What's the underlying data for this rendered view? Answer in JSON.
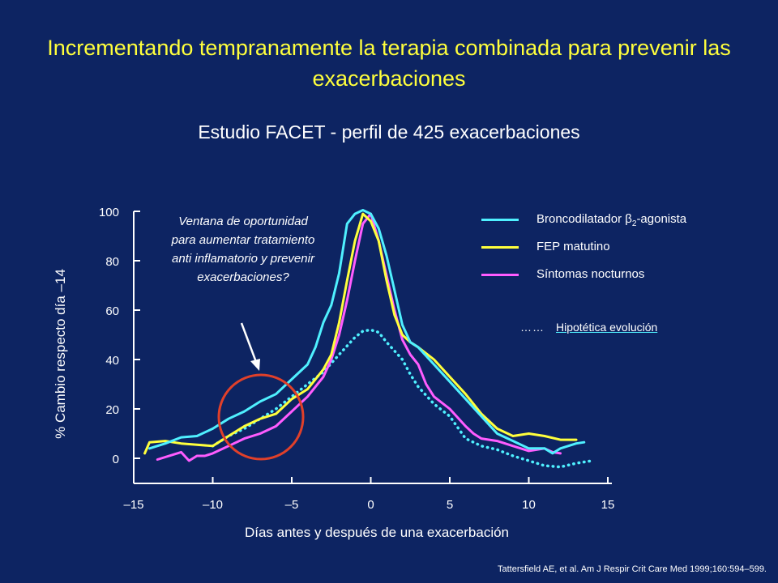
{
  "slide": {
    "title": "Incrementando tempranamente la terapia combinada para prevenir las exacerbaciones",
    "subtitle": "Estudio FACET - perfil de 425 exacerbaciones",
    "citation": "Tattersfield AE, et al. Am J Respir Crit Care Med 1999;160:594–599.",
    "annotation": "Ventana de oportunidad para aumentar tratamiento anti inflamatorio y prevenir exacerbaciones?",
    "hypothetical_dots": "……",
    "hypothetical_label": "Hipotética evolución"
  },
  "colors": {
    "background": "#0d2462",
    "title": "#ffff3c",
    "cyan": "#4ff0ff",
    "yellow": "#ffff3c",
    "magenta": "#ff5cff",
    "circle": "#e0402a"
  },
  "chart_data": {
    "type": "line",
    "title": "",
    "xlabel": "Días antes y después de una exacerbación",
    "ylabel": "% Cambio respecto día  –14",
    "xlim": [
      -15,
      15
    ],
    "ylim": [
      -5,
      100
    ],
    "xticks": [
      -15,
      -10,
      -5,
      0,
      5,
      10,
      15
    ],
    "xtick_labels": [
      "–15",
      "–10",
      "–5",
      "0",
      "5",
      "10",
      "15"
    ],
    "yticks": [
      0,
      20,
      40,
      60,
      80,
      100
    ],
    "ytick_labels": [
      "0",
      "20",
      "40",
      "60",
      "80",
      "100"
    ],
    "legend_position": "top-right",
    "series": [
      {
        "name": "Broncodilatador β2-agonista",
        "color": "#4ff0ff",
        "style": "solid",
        "points": [
          [
            -14,
            4
          ],
          [
            -13,
            6
          ],
          [
            -12,
            8.5
          ],
          [
            -11,
            9
          ],
          [
            -10,
            12
          ],
          [
            -9,
            16
          ],
          [
            -8,
            19
          ],
          [
            -7,
            23
          ],
          [
            -6,
            26
          ],
          [
            -5,
            32
          ],
          [
            -4,
            38
          ],
          [
            -3.5,
            45
          ],
          [
            -3,
            55
          ],
          [
            -2.5,
            62
          ],
          [
            -2,
            75
          ],
          [
            -1.5,
            95
          ],
          [
            -1,
            99
          ],
          [
            -0.5,
            100.5
          ],
          [
            0,
            99
          ],
          [
            0.5,
            93
          ],
          [
            1,
            82
          ],
          [
            1.5,
            68
          ],
          [
            2,
            54
          ],
          [
            2.5,
            47
          ],
          [
            3,
            45
          ],
          [
            4,
            38
          ],
          [
            5,
            31
          ],
          [
            6,
            24
          ],
          [
            7,
            17
          ],
          [
            8,
            10
          ],
          [
            9,
            7
          ],
          [
            10,
            4
          ],
          [
            11,
            4
          ],
          [
            11.5,
            2
          ],
          [
            12,
            4
          ],
          [
            13,
            6
          ],
          [
            13.5,
            6.5
          ]
        ]
      },
      {
        "name": "FEP matutino",
        "color": "#ffff3c",
        "style": "solid",
        "points": [
          [
            -14.3,
            2
          ],
          [
            -14,
            6.5
          ],
          [
            -13,
            7
          ],
          [
            -12,
            6
          ],
          [
            -11,
            5.5
          ],
          [
            -10,
            5
          ],
          [
            -9,
            9
          ],
          [
            -8,
            13
          ],
          [
            -7,
            16
          ],
          [
            -6,
            18
          ],
          [
            -5,
            24
          ],
          [
            -4,
            28
          ],
          [
            -3,
            36
          ],
          [
            -2.5,
            42
          ],
          [
            -2,
            55
          ],
          [
            -1.5,
            72
          ],
          [
            -1,
            88
          ],
          [
            -0.5,
            99
          ],
          [
            0,
            96
          ],
          [
            0.5,
            88
          ],
          [
            1,
            72
          ],
          [
            1.5,
            58
          ],
          [
            2,
            50
          ],
          [
            2.5,
            47
          ],
          [
            3,
            45
          ],
          [
            4,
            40
          ],
          [
            5,
            33
          ],
          [
            6,
            26
          ],
          [
            7,
            18
          ],
          [
            8,
            12
          ],
          [
            9,
            9
          ],
          [
            10,
            10
          ],
          [
            11,
            9
          ],
          [
            12,
            7.5
          ],
          [
            13,
            7.5
          ]
        ]
      },
      {
        "name": "Síntomas nocturnos",
        "color": "#ff5cff",
        "style": "solid",
        "points": [
          [
            -13.5,
            -0.5
          ],
          [
            -12.5,
            1.5
          ],
          [
            -12,
            2.5
          ],
          [
            -11.5,
            -1
          ],
          [
            -11,
            1
          ],
          [
            -10.5,
            1
          ],
          [
            -10,
            2
          ],
          [
            -9,
            5
          ],
          [
            -8,
            8
          ],
          [
            -7,
            10
          ],
          [
            -6,
            13
          ],
          [
            -5,
            19
          ],
          [
            -4,
            25
          ],
          [
            -3,
            33
          ],
          [
            -2.5,
            40
          ],
          [
            -2,
            50
          ],
          [
            -1.5,
            64
          ],
          [
            -1,
            80
          ],
          [
            -0.5,
            95
          ],
          [
            0,
            99
          ],
          [
            0.5,
            88
          ],
          [
            1,
            74
          ],
          [
            1.5,
            60
          ],
          [
            2,
            48
          ],
          [
            2.5,
            42
          ],
          [
            3,
            38
          ],
          [
            3.5,
            30
          ],
          [
            4,
            25
          ],
          [
            5,
            20
          ],
          [
            6,
            13
          ],
          [
            6.5,
            10
          ],
          [
            7,
            8
          ],
          [
            8,
            7
          ],
          [
            9,
            5
          ],
          [
            10,
            3
          ],
          [
            11,
            4
          ],
          [
            11.5,
            2.5
          ],
          [
            12,
            2
          ]
        ]
      },
      {
        "name": "Hipotética evolución",
        "color": "#4ff0ff",
        "style": "dotted",
        "points": [
          [
            -10,
            5
          ],
          [
            -9,
            9
          ],
          [
            -8,
            12
          ],
          [
            -7,
            16
          ],
          [
            -6,
            20
          ],
          [
            -5,
            25
          ],
          [
            -4,
            30
          ],
          [
            -3,
            35
          ],
          [
            -2,
            42
          ],
          [
            -1,
            49
          ],
          [
            -0.5,
            51.5
          ],
          [
            0,
            52
          ],
          [
            0.5,
            51
          ],
          [
            1,
            47
          ],
          [
            2,
            40
          ],
          [
            2.5,
            34
          ],
          [
            3,
            29
          ],
          [
            4,
            22
          ],
          [
            5,
            17
          ],
          [
            6,
            8
          ],
          [
            7,
            5
          ],
          [
            8,
            3.5
          ],
          [
            9,
            1
          ],
          [
            10,
            -1
          ],
          [
            11,
            -3
          ],
          [
            12,
            -3.5
          ],
          [
            13,
            -2
          ],
          [
            14,
            -1
          ]
        ]
      }
    ]
  }
}
